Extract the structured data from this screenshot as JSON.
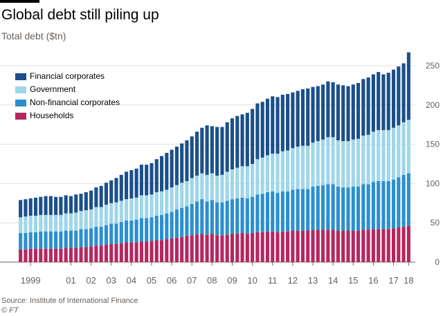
{
  "header": {
    "title": "Global debt still piling up",
    "subtitle": "Total debt ($tn)"
  },
  "footer": {
    "source": "Source: Institute of International Finance",
    "credit": "© FT"
  },
  "colors": {
    "households": "#b5275e",
    "nonfinancial": "#2b8fcf",
    "government": "#9fd6ea",
    "financial": "#1b4f8a",
    "grid": "#e3e0dc",
    "axis": "#66605c"
  },
  "legend": [
    {
      "label": "Financial corporates",
      "color": "#1b4f8a"
    },
    {
      "label": "Government",
      "color": "#9fd6ea"
    },
    {
      "label": "Non-financial corporates",
      "color": "#2b8fcf"
    },
    {
      "label": "Households",
      "color": "#b5275e"
    }
  ],
  "chart_data": {
    "type": "bar",
    "stacked": true,
    "title": "Global debt still piling up",
    "subtitle": "Total debt ($tn)",
    "xlabel": "",
    "ylabel": "",
    "ylim": [
      0,
      250
    ],
    "yticks": [
      0,
      50,
      100,
      150,
      200,
      250
    ],
    "y_axis_position": "right",
    "grid": true,
    "legend_position": "top-left",
    "x_tick_labels": [
      {
        "label": "1999",
        "index": 2
      },
      {
        "label": "01",
        "index": 10
      },
      {
        "label": "02",
        "index": 14
      },
      {
        "label": "03",
        "index": 18
      },
      {
        "label": "04",
        "index": 22
      },
      {
        "label": "05",
        "index": 26
      },
      {
        "label": "06",
        "index": 30
      },
      {
        "label": "07",
        "index": 34
      },
      {
        "label": "08",
        "index": 38
      },
      {
        "label": "09",
        "index": 42
      },
      {
        "label": "10",
        "index": 46
      },
      {
        "label": "11",
        "index": 50
      },
      {
        "label": "12",
        "index": 54
      },
      {
        "label": "13",
        "index": 58
      },
      {
        "label": "14",
        "index": 62
      },
      {
        "label": "15",
        "index": 66
      },
      {
        "label": "16",
        "index": 70
      },
      {
        "label": "17",
        "index": 74
      },
      {
        "label": "18",
        "index": 77
      }
    ],
    "categories": [
      "1998Q4",
      "1999Q1",
      "1999Q2",
      "1999Q3",
      "1999Q4",
      "2000Q1",
      "2000Q2",
      "2000Q3",
      "2000Q4",
      "2001Q1",
      "2001Q2",
      "2001Q3",
      "2001Q4",
      "2002Q1",
      "2002Q2",
      "2002Q3",
      "2002Q4",
      "2003Q1",
      "2003Q2",
      "2003Q3",
      "2003Q4",
      "2004Q1",
      "2004Q2",
      "2004Q3",
      "2004Q4",
      "2005Q1",
      "2005Q2",
      "2005Q3",
      "2005Q4",
      "2006Q1",
      "2006Q2",
      "2006Q3",
      "2006Q4",
      "2007Q1",
      "2007Q2",
      "2007Q3",
      "2007Q4",
      "2008Q1",
      "2008Q2",
      "2008Q3",
      "2008Q4",
      "2009Q1",
      "2009Q2",
      "2009Q3",
      "2009Q4",
      "2010Q1",
      "2010Q2",
      "2010Q3",
      "2010Q4",
      "2011Q1",
      "2011Q2",
      "2011Q3",
      "2011Q4",
      "2012Q1",
      "2012Q2",
      "2012Q3",
      "2012Q4",
      "2013Q1",
      "2013Q2",
      "2013Q3",
      "2013Q4",
      "2014Q1",
      "2014Q2",
      "2014Q3",
      "2014Q4",
      "2015Q1",
      "2015Q2",
      "2015Q3",
      "2015Q4",
      "2016Q1",
      "2016Q2",
      "2016Q3",
      "2016Q4",
      "2017Q1",
      "2017Q2",
      "2017Q3",
      "2017Q4",
      "2018Q1"
    ],
    "series": [
      {
        "name": "Households",
        "values": [
          16,
          16,
          17,
          17,
          17,
          17,
          17,
          17,
          17,
          18,
          18,
          18,
          19,
          19,
          20,
          21,
          21,
          22,
          23,
          23,
          24,
          25,
          25,
          25,
          26,
          26,
          27,
          28,
          28,
          29,
          30,
          31,
          32,
          33,
          34,
          35,
          36,
          35,
          36,
          34,
          34,
          35,
          36,
          36,
          37,
          36,
          37,
          38,
          38,
          39,
          39,
          38,
          39,
          39,
          40,
          40,
          40,
          40,
          41,
          41,
          41,
          41,
          41,
          40,
          40,
          40,
          40,
          40,
          41,
          41,
          42,
          42,
          42,
          42,
          43,
          44,
          45,
          46
        ]
      },
      {
        "name": "Non-financial corporates",
        "values": [
          21,
          21,
          21,
          21,
          22,
          22,
          22,
          22,
          22,
          22,
          22,
          22,
          23,
          23,
          23,
          24,
          24,
          25,
          26,
          26,
          27,
          28,
          28,
          29,
          30,
          30,
          30,
          31,
          32,
          33,
          34,
          36,
          37,
          38,
          40,
          42,
          44,
          42,
          43,
          42,
          42,
          43,
          44,
          45,
          45,
          45,
          46,
          48,
          49,
          50,
          51,
          50,
          51,
          51,
          52,
          53,
          53,
          53,
          55,
          56,
          57,
          58,
          58,
          56,
          55,
          55,
          56,
          56,
          58,
          58,
          60,
          61,
          61,
          61,
          62,
          64,
          66,
          67
        ]
      },
      {
        "name": "Government",
        "values": [
          20,
          21,
          21,
          21,
          21,
          21,
          21,
          21,
          21,
          22,
          22,
          23,
          23,
          24,
          24,
          25,
          25,
          26,
          26,
          27,
          27,
          27,
          28,
          28,
          29,
          29,
          29,
          30,
          30,
          30,
          31,
          31,
          32,
          32,
          33,
          33,
          33,
          34,
          34,
          34,
          35,
          37,
          38,
          39,
          40,
          41,
          42,
          45,
          46,
          47,
          48,
          50,
          51,
          52,
          53,
          54,
          55,
          55,
          56,
          57,
          58,
          60,
          60,
          59,
          59,
          59,
          60,
          61,
          62,
          63,
          64,
          65,
          65,
          65,
          66,
          66,
          67,
          68
        ]
      },
      {
        "name": "Financial corporates",
        "values": [
          22,
          22,
          22,
          23,
          23,
          24,
          24,
          23,
          23,
          23,
          22,
          23,
          22,
          23,
          24,
          25,
          27,
          28,
          29,
          31,
          33,
          35,
          36,
          37,
          39,
          39,
          40,
          42,
          45,
          47,
          48,
          49,
          50,
          52,
          53,
          56,
          58,
          63,
          60,
          62,
          61,
          63,
          65,
          66,
          66,
          68,
          70,
          71,
          71,
          72,
          73,
          72,
          72,
          72,
          71,
          71,
          72,
          73,
          71,
          70,
          70,
          71,
          70,
          71,
          71,
          70,
          70,
          71,
          72,
          73,
          73,
          74,
          71,
          73,
          74,
          75,
          75,
          86
        ]
      }
    ]
  }
}
